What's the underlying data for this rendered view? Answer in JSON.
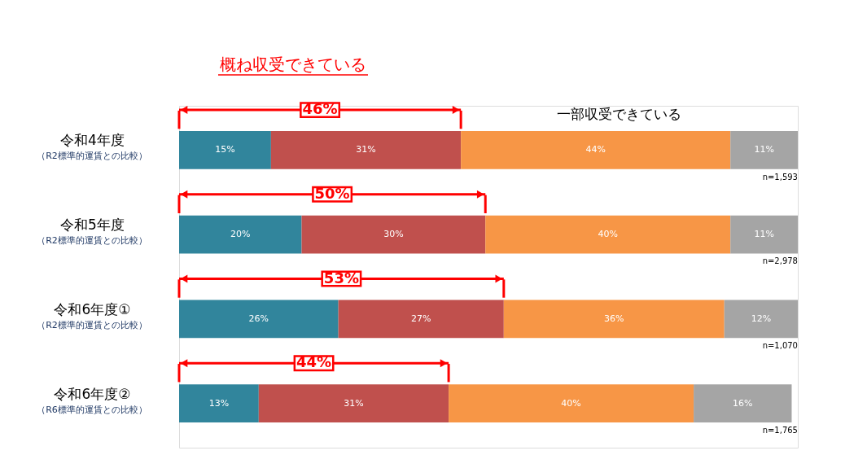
{
  "chart_data": {
    "type": "bar",
    "orientation": "horizontal",
    "stacked": true,
    "tick_labels": "y",
    "categories": [
      "令和4年度",
      "令和5年度",
      "令和6年度①",
      "令和6年度②"
    ],
    "series": [
      {
        "color": "#31859c",
        "values": [
          15,
          20,
          26,
          13
        ],
        "value_labels": [
          "15%",
          "20%",
          "26%",
          "13%"
        ]
      },
      {
        "color": "#c0504d",
        "values": [
          31,
          30,
          27,
          31
        ],
        "value_labels": [
          "31%",
          "30%",
          "27%",
          "31%"
        ]
      },
      {
        "color": "#f79646",
        "values": [
          44,
          40,
          36,
          40
        ],
        "value_labels": [
          "44%",
          "40%",
          "36%",
          "40%"
        ]
      },
      {
        "color": "#a5a5a5",
        "values": [
          11,
          11,
          12,
          16
        ],
        "value_labels": [
          "11%",
          "11%",
          "12%",
          "16%"
        ]
      }
    ],
    "annotations": [
      "概ね収受できている",
      "一部収受できている",
      "46%",
      "50%",
      "53%",
      "44%",
      "n=1,593",
      "n=2,978",
      "n=1,070",
      "n=1,765",
      "（R2標準的運賃との比較）",
      "（R2標準的運賃との比較）",
      "（R2標準的運賃との比較）",
      "（R6標準的運賃との比較）"
    ]
  }
}
